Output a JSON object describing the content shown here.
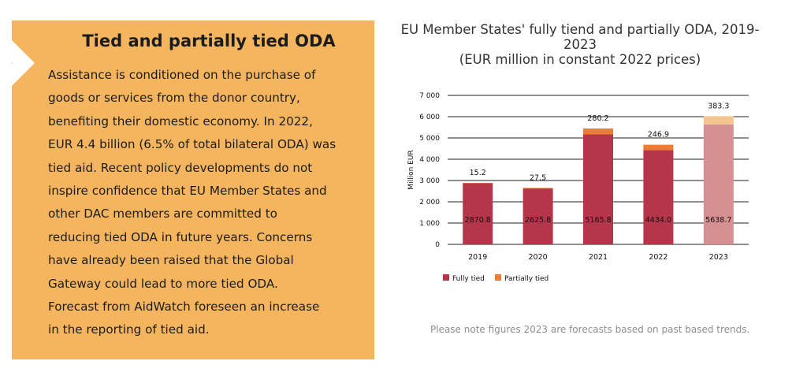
{
  "panel": {
    "title": "Tied and partially tied ODA",
    "lines": [
      "Assistance is conditioned on the purchase of",
      "goods or services from the donor country,",
      "benefiting their domestic economy. In 2022,",
      "EUR 4.4 billion (6.5% of total bilateral ODA) was",
      "tied aid. Recent policy developments do not",
      "inspire confidence that EU Member States and",
      "other DAC members are committed to",
      "reducing tied ODA in future years. Concerns",
      "have already been raised that the Global",
      "Gateway could lead to more tied ODA.",
      "Forecast from AidWatch foreseen an increase",
      "in the reporting of tied aid."
    ]
  },
  "chart_title_lines": [
    "EU Member States' fully tiend and partially ODA, 2019-",
    "2023",
    "(EUR million in constant 2022 prices)"
  ],
  "note": "Please note figures 2023 are forecasts based on past based trends.",
  "colors": {
    "panel_bg": "#f5b55f",
    "fully_tied": "#b5354a",
    "partially_tied": "#ee7d33",
    "fully_tied_forecast": "#d69092",
    "partially_tied_forecast": "#f5c58f"
  },
  "chart_data": {
    "type": "bar",
    "stacked": true,
    "categories": [
      "2019",
      "2020",
      "2021",
      "2022",
      "2023"
    ],
    "series": [
      {
        "name": "Fully tied",
        "values": [
          2870.8,
          2625.8,
          5165.8,
          4434.0,
          5638.7
        ],
        "labels": [
          "2870.8",
          "2625.8",
          "5165.8",
          "4434.0",
          "5638.7"
        ]
      },
      {
        "name": "Partially tied",
        "values": [
          15.2,
          27.5,
          280.2,
          246.9,
          383.3
        ],
        "labels": [
          "15.2",
          "27.5",
          "280.2",
          "246.9",
          "383.3"
        ]
      }
    ],
    "ylabel": "Million EUR",
    "ylim": [
      0,
      7000
    ],
    "yticks": [
      0,
      1000,
      2000,
      3000,
      4000,
      5000,
      6000,
      7000
    ],
    "ytick_labels": [
      "0",
      "1 000",
      "2 000",
      "3 000",
      "4 000",
      "5 000",
      "6 000",
      "7 000"
    ],
    "grid": true,
    "legend": "bottom-left",
    "forecast_categories": [
      "2023"
    ]
  }
}
